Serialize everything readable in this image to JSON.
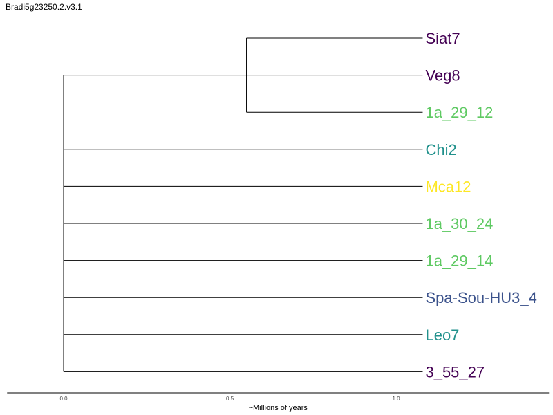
{
  "title": "Bradi5g23250.2.v3.1",
  "axis": {
    "label": "~Millions of years",
    "ticks": [
      "0.0",
      "0.5",
      "1.0"
    ],
    "tick_values": [
      0.0,
      0.5,
      1.0
    ],
    "range": [
      -0.17,
      1.46
    ]
  },
  "tree": {
    "leaf_tip": 1.08,
    "inner_clade_node": 0.55,
    "leaves": [
      {
        "name": "Siat7",
        "color": "#440154"
      },
      {
        "name": "Veg8",
        "color": "#440154"
      },
      {
        "name": "1a_29_12",
        "color": "#5ec962"
      },
      {
        "name": "Chi2",
        "color": "#21918c"
      },
      {
        "name": "Mca12",
        "color": "#fde725"
      },
      {
        "name": "1a_30_24",
        "color": "#5ec962"
      },
      {
        "name": "1a_29_14",
        "color": "#5ec962"
      },
      {
        "name": "Spa-Sou-HU3_4",
        "color": "#3b528b"
      },
      {
        "name": "Leo7",
        "color": "#21918c"
      },
      {
        "name": "3_55_27",
        "color": "#440154"
      }
    ]
  }
}
